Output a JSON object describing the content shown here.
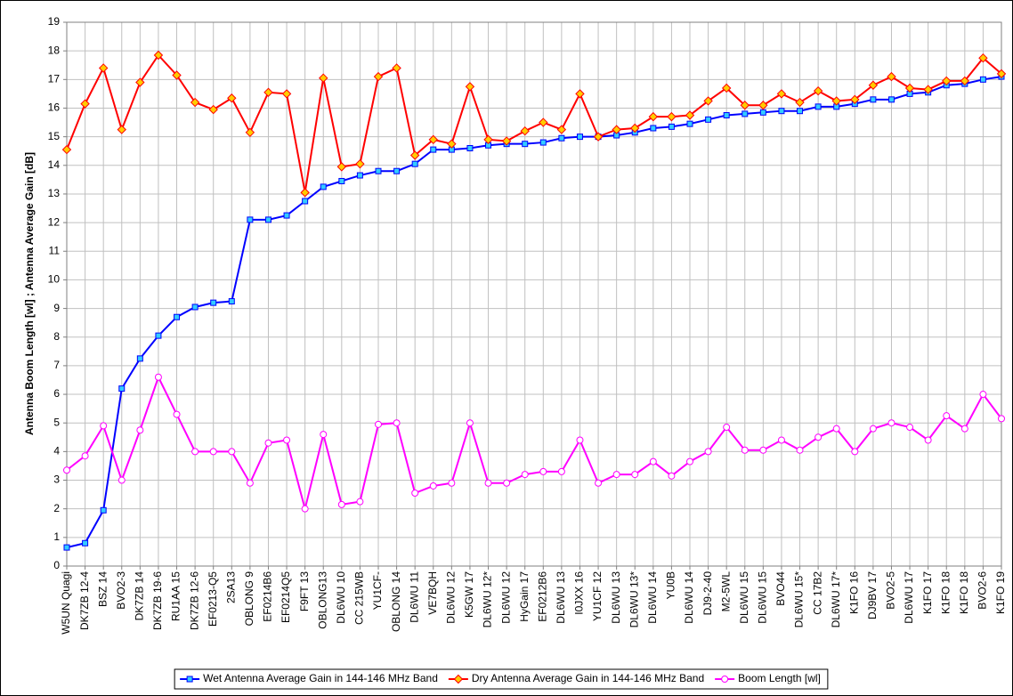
{
  "chart_data": {
    "type": "line",
    "y_label": "Antenna Boom Length [wl] ; Antenna Average Gain [dB]",
    "categories": [
      "W5UN Quagi",
      "DK7ZB 12-4",
      "BSZ 14",
      "BVO2-3",
      "DK7ZB 14",
      "DK7ZB 19-6",
      "RU1AA 15",
      "DK7ZB 12-6",
      "EF0213-Q5",
      "2SA13",
      "OBLONG 9",
      "EF0214B6",
      "EF0214Q5",
      "F9FT 13",
      "OBLONG13",
      "DL6WU 10",
      "CC 215WB",
      "YU1CF-",
      "OBLONG 14",
      "DL6WU 11",
      "VE7BQH",
      "DL6WU 12",
      "K5GW 17",
      "DL6WU 12*",
      "DL6WU 12",
      "HyGain 17",
      "EF0212B6",
      "DL6WU 13",
      "I0JXX 16",
      "YU1CF 12",
      "DL6WU 13",
      "DL6WU 13*",
      "DL6WU 14",
      "YU0B",
      "DL6WU 14",
      "DJ9-2-40",
      "M2-5WL",
      "DL6WU 15",
      "DL6WU 15",
      "BVO44",
      "DL6WU 15*",
      "CC 17B2",
      "DL6WU 17*",
      "K1FO 16",
      "DJ9BV 17",
      "BVO2-5",
      "DL6WU 17",
      "K1FO 17",
      "K1FO 18",
      "K1FO 18",
      "BVO2-6",
      "K1FO 19"
    ],
    "series": [
      {
        "name": "Wet Antenna Average Gain in 144-146 MHz Band",
        "color": "#0000ff",
        "marker": "square",
        "marker_fill": "#33ccff",
        "values": [
          0.65,
          0.8,
          1.95,
          6.2,
          7.25,
          8.05,
          8.7,
          9.05,
          9.2,
          9.25,
          12.1,
          12.1,
          12.25,
          12.75,
          13.25,
          13.45,
          13.65,
          13.8,
          13.8,
          14.05,
          14.55,
          14.55,
          14.6,
          14.7,
          14.75,
          14.75,
          14.8,
          14.95,
          15.0,
          15.0,
          15.05,
          15.15,
          15.3,
          15.35,
          15.45,
          15.6,
          15.75,
          15.8,
          15.85,
          15.9,
          15.9,
          16.05,
          16.05,
          16.15,
          16.3,
          16.3,
          16.5,
          16.55,
          16.8,
          16.85,
          17.0,
          17.1
        ]
      },
      {
        "name": "Dry Antenna Average Gain in 144-146 MHz Band",
        "color": "#ff0000",
        "marker": "diamond",
        "marker_fill": "#ffcc00",
        "values": [
          14.55,
          16.15,
          17.4,
          15.25,
          16.9,
          17.85,
          17.15,
          16.2,
          15.95,
          16.35,
          15.15,
          16.55,
          16.5,
          13.05,
          17.05,
          13.95,
          14.05,
          17.1,
          17.4,
          14.35,
          14.9,
          14.75,
          16.75,
          14.9,
          14.85,
          15.2,
          15.5,
          15.25,
          16.5,
          15.0,
          15.25,
          15.3,
          15.7,
          15.7,
          15.75,
          16.25,
          16.7,
          16.1,
          16.1,
          16.5,
          16.2,
          16.6,
          16.25,
          16.3,
          16.8,
          17.1,
          16.7,
          16.65,
          16.95,
          16.95,
          17.75,
          17.2
        ]
      },
      {
        "name": "Boom Length [wl]",
        "color": "#ff00ff",
        "marker": "circle",
        "marker_fill": "#ffffff",
        "values": [
          3.35,
          3.85,
          4.9,
          3.0,
          4.75,
          6.6,
          5.3,
          4.0,
          4.0,
          4.0,
          2.9,
          4.3,
          4.4,
          2.0,
          4.6,
          2.15,
          2.25,
          4.95,
          5.0,
          2.55,
          2.8,
          2.9,
          5.0,
          2.9,
          2.9,
          3.2,
          3.3,
          3.3,
          4.4,
          2.9,
          3.2,
          3.2,
          3.65,
          3.15,
          3.65,
          4.0,
          4.85,
          4.05,
          4.05,
          4.4,
          4.05,
          4.5,
          4.8,
          4.0,
          4.8,
          5.0,
          4.85,
          4.4,
          5.25,
          4.8,
          6.0,
          5.15
        ]
      }
    ],
    "ylim": [
      0,
      19
    ],
    "yticks": [
      0,
      1,
      2,
      3,
      4,
      5,
      6,
      7,
      8,
      9,
      10,
      11,
      12,
      13,
      14,
      15,
      16,
      17,
      18,
      19
    ],
    "grid": true,
    "legend": "bottom"
  }
}
